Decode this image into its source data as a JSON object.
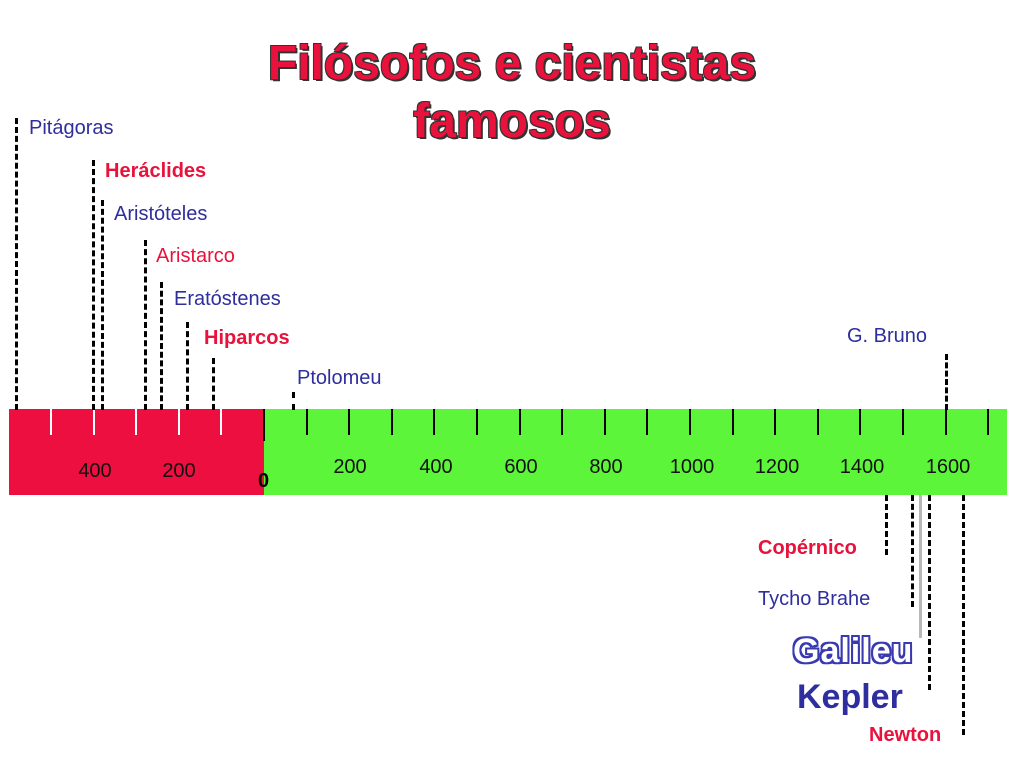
{
  "title": {
    "line1": "Filósofos e cientistas",
    "line2": "famosos"
  },
  "colors": {
    "title": "#e8123c",
    "red_era": "#ed0f3f",
    "green_era": "#5df53a",
    "blue_name": "#2e2e9e",
    "red_name": "#e8123c"
  },
  "axis": {
    "bc_labels": [
      "400",
      "200"
    ],
    "zero_label": "0",
    "ad_labels": [
      "200",
      "400",
      "600",
      "800",
      "1000",
      "1200",
      "1400",
      "1600"
    ]
  },
  "people_above": [
    {
      "name": "Pitágoras",
      "color": "blue"
    },
    {
      "name": "Heráclides",
      "color": "red"
    },
    {
      "name": "Aristóteles",
      "color": "blue"
    },
    {
      "name": "Aristarco",
      "color": "red"
    },
    {
      "name": "Eratóstenes",
      "color": "blue"
    },
    {
      "name": "Hiparcos",
      "color": "red"
    },
    {
      "name": "Ptolomeu",
      "color": "blue"
    },
    {
      "name": "G. Bruno",
      "color": "blue"
    }
  ],
  "people_below": [
    {
      "name": "Copérnico",
      "color": "red"
    },
    {
      "name": "Tycho Brahe",
      "color": "blue"
    },
    {
      "name": "Galileu",
      "color": "blue"
    },
    {
      "name": "Kepler",
      "color": "blue"
    },
    {
      "name": "Newton",
      "color": "red"
    }
  ]
}
